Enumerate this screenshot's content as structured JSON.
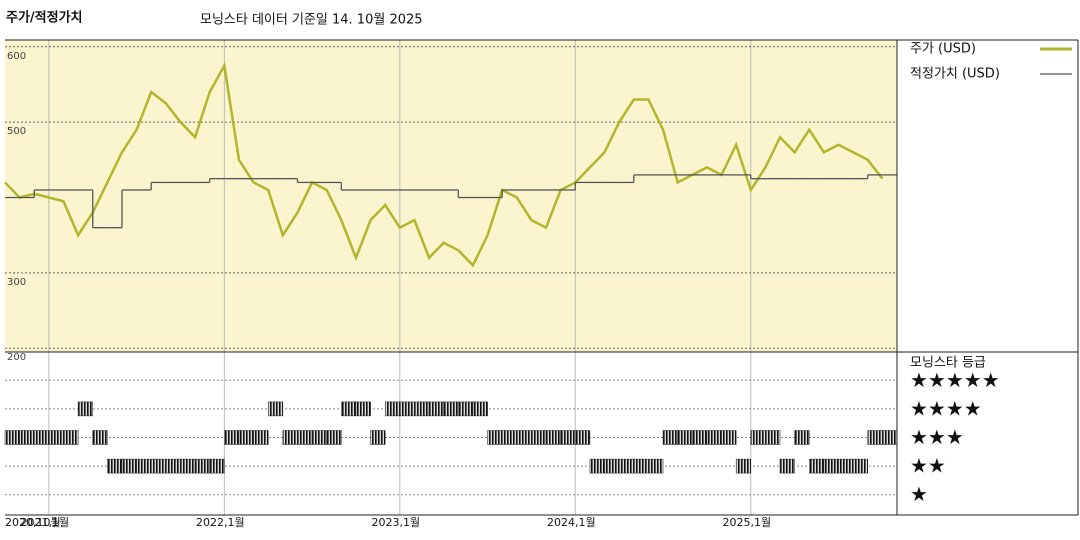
{
  "chart_data": {
    "type": "line",
    "title": "주가/적정가치",
    "subtitle": "모닝스타 데이터 기준일 14. 10월 2025",
    "x": [
      "2020-10",
      "2020-11",
      "2020-12",
      "2021-01",
      "2021-02",
      "2021-03",
      "2021-04",
      "2021-05",
      "2021-06",
      "2021-07",
      "2021-08",
      "2021-09",
      "2021-10",
      "2021-11",
      "2021-12",
      "2022-01",
      "2022-02",
      "2022-03",
      "2022-04",
      "2022-05",
      "2022-06",
      "2022-07",
      "2022-08",
      "2022-09",
      "2022-10",
      "2022-11",
      "2022-12",
      "2023-01",
      "2023-02",
      "2023-03",
      "2023-04",
      "2023-05",
      "2023-06",
      "2023-07",
      "2023-08",
      "2023-09",
      "2023-10",
      "2023-11",
      "2023-12",
      "2024-01",
      "2024-02",
      "2024-03",
      "2024-04",
      "2024-05",
      "2024-06",
      "2024-07",
      "2024-08",
      "2024-09",
      "2024-10",
      "2024-11",
      "2024-12",
      "2025-01",
      "2025-02",
      "2025-03",
      "2025-04",
      "2025-05",
      "2025-06",
      "2025-07",
      "2025-08",
      "2025-09",
      "2025-10"
    ],
    "xlim": [
      "2020-10",
      "2025-11"
    ],
    "xticks": [
      {
        "value": "2020-10",
        "label": "2020,10월"
      },
      {
        "value": "2021-01",
        "label": "2021,1월"
      },
      {
        "value": "2022-01",
        "label": "2022,1월"
      },
      {
        "value": "2023-01",
        "label": "2023,1월"
      },
      {
        "value": "2024-01",
        "label": "2024,1월"
      },
      {
        "value": "2025-01",
        "label": "2025,1월"
      }
    ],
    "ylim": [
      195,
      609
    ],
    "yticks": [
      200,
      300,
      500,
      600
    ],
    "series": [
      {
        "name": "주가 (USD)",
        "color": "#b3b52b",
        "values": [
          420,
          400,
          405,
          400,
          395,
          350,
          380,
          420,
          460,
          490,
          540,
          525,
          500,
          480,
          540,
          575,
          450,
          420,
          410,
          350,
          380,
          420,
          410,
          370,
          320,
          370,
          390,
          360,
          370,
          320,
          340,
          330,
          310,
          350,
          410,
          400,
          370,
          360,
          410,
          420,
          440,
          460,
          500,
          530,
          530,
          490,
          420,
          430,
          440,
          430,
          470,
          410,
          440,
          480,
          460,
          490,
          460,
          470,
          460,
          450,
          425
        ]
      },
      {
        "name": "적정가치 (USD)",
        "color": "#555555",
        "values": [
          400,
          400,
          410,
          410,
          410,
          410,
          360,
          360,
          410,
          410,
          420,
          420,
          420,
          420,
          425,
          425,
          425,
          425,
          425,
          425,
          420,
          420,
          420,
          410,
          410,
          410,
          410,
          410,
          410,
          410,
          410,
          400,
          400,
          400,
          410,
          410,
          410,
          410,
          410,
          420,
          420,
          420,
          420,
          430,
          430,
          430,
          430,
          430,
          430,
          430,
          430,
          425,
          425,
          425,
          425,
          425,
          425,
          425,
          425,
          430,
          430
        ]
      }
    ],
    "ratings": {
      "name": "모닝스타 등급",
      "labels": [
        "★★★★★",
        "★★★★",
        "★★★",
        "★★",
        "★"
      ],
      "values": [
        3,
        3,
        3,
        3,
        3,
        4,
        3,
        2,
        2,
        2,
        2,
        2,
        2,
        2,
        2,
        3,
        3,
        3,
        4,
        3,
        3,
        3,
        3,
        4,
        4,
        3,
        4,
        4,
        4,
        4,
        4,
        4,
        4,
        3,
        3,
        3,
        3,
        3,
        3,
        3,
        2,
        2,
        2,
        2,
        2,
        3,
        3,
        3,
        3,
        3,
        2,
        3,
        3,
        2,
        3,
        2,
        2,
        2,
        2,
        3,
        3
      ]
    }
  }
}
